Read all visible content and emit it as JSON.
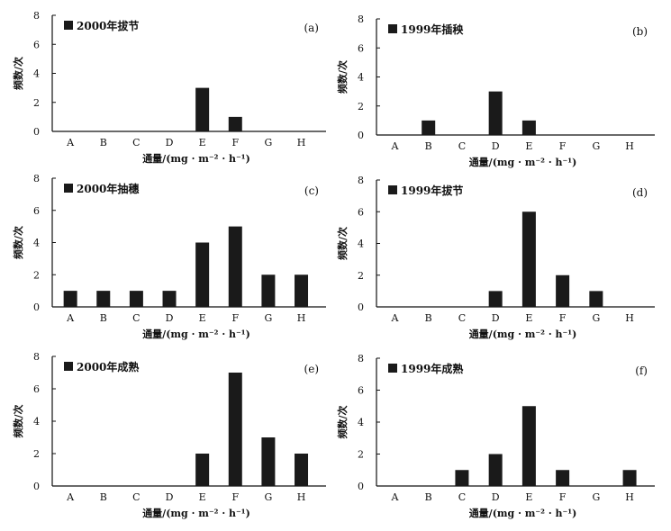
{
  "figure": {
    "ylabel": "频数/次",
    "xlabel": "通量/(mg · m⁻² · h⁻¹)",
    "bar_color": "#1a1a1a"
  },
  "chart_data": [
    {
      "type": "bar",
      "panel": "(a)",
      "series": [
        {
          "name": "2000年拔节",
          "values": [
            0,
            0,
            0,
            0,
            3,
            1,
            0,
            0
          ]
        }
      ],
      "categories": [
        "A",
        "B",
        "C",
        "D",
        "E",
        "F",
        "G",
        "H"
      ],
      "ylim": [
        0,
        8
      ],
      "yticks": [
        0,
        2,
        4,
        6,
        8
      ],
      "xlabel": "通量/(mg · m⁻² · h⁻¹)",
      "ylabel": "频数/次",
      "legend": "top-left"
    },
    {
      "type": "bar",
      "panel": "(b)",
      "series": [
        {
          "name": "1999年插秧",
          "values": [
            0,
            1,
            0,
            3,
            1,
            0,
            0,
            0
          ]
        }
      ],
      "categories": [
        "A",
        "B",
        "C",
        "D",
        "E",
        "F",
        "G",
        "H"
      ],
      "ylim": [
        0,
        8
      ],
      "yticks": [
        0,
        2,
        4,
        6,
        8
      ],
      "xlabel": "通量/(mg · m⁻² · h⁻¹)",
      "ylabel": "频数/次",
      "legend": "top-left"
    },
    {
      "type": "bar",
      "panel": "(c)",
      "series": [
        {
          "name": "2000年抽穗",
          "values": [
            1,
            1,
            1,
            1,
            4,
            5,
            2,
            2
          ]
        }
      ],
      "categories": [
        "A",
        "B",
        "C",
        "D",
        "E",
        "F",
        "G",
        "H"
      ],
      "ylim": [
        0,
        8
      ],
      "yticks": [
        0,
        2,
        4,
        6,
        8
      ],
      "xlabel": "通量/(mg · m⁻² · h⁻¹)",
      "ylabel": "频数/次",
      "legend": "top-left"
    },
    {
      "type": "bar",
      "panel": "(d)",
      "series": [
        {
          "name": "1999年拔节",
          "values": [
            0,
            0,
            0,
            1,
            6,
            2,
            1,
            0
          ]
        }
      ],
      "categories": [
        "A",
        "B",
        "C",
        "D",
        "E",
        "F",
        "G",
        "H"
      ],
      "ylim": [
        0,
        8
      ],
      "yticks": [
        0,
        2,
        4,
        6,
        8
      ],
      "xlabel": "通量/(mg · m⁻² · h⁻¹)",
      "ylabel": "频数/次",
      "legend": "top-left"
    },
    {
      "type": "bar",
      "panel": "(e)",
      "series": [
        {
          "name": "2000年成熟",
          "values": [
            0,
            0,
            0,
            0,
            2,
            7,
            3,
            2
          ]
        }
      ],
      "categories": [
        "A",
        "B",
        "C",
        "D",
        "E",
        "F",
        "G",
        "H"
      ],
      "ylim": [
        0,
        8
      ],
      "yticks": [
        0,
        2,
        4,
        6,
        8
      ],
      "xlabel": "通量/(mg · m⁻² · h⁻¹)",
      "ylabel": "频数/次",
      "legend": "top-left"
    },
    {
      "type": "bar",
      "panel": "(f)",
      "series": [
        {
          "name": "1999年成熟",
          "values": [
            0,
            0,
            1,
            2,
            5,
            1,
            0,
            1
          ]
        }
      ],
      "categories": [
        "A",
        "B",
        "C",
        "D",
        "E",
        "F",
        "G",
        "H"
      ],
      "ylim": [
        0,
        8
      ],
      "yticks": [
        0,
        2,
        4,
        6,
        8
      ],
      "xlabel": "通量/(mg · m⁻² · h⁻¹)",
      "ylabel": "频数/次",
      "legend": "top-left"
    }
  ]
}
